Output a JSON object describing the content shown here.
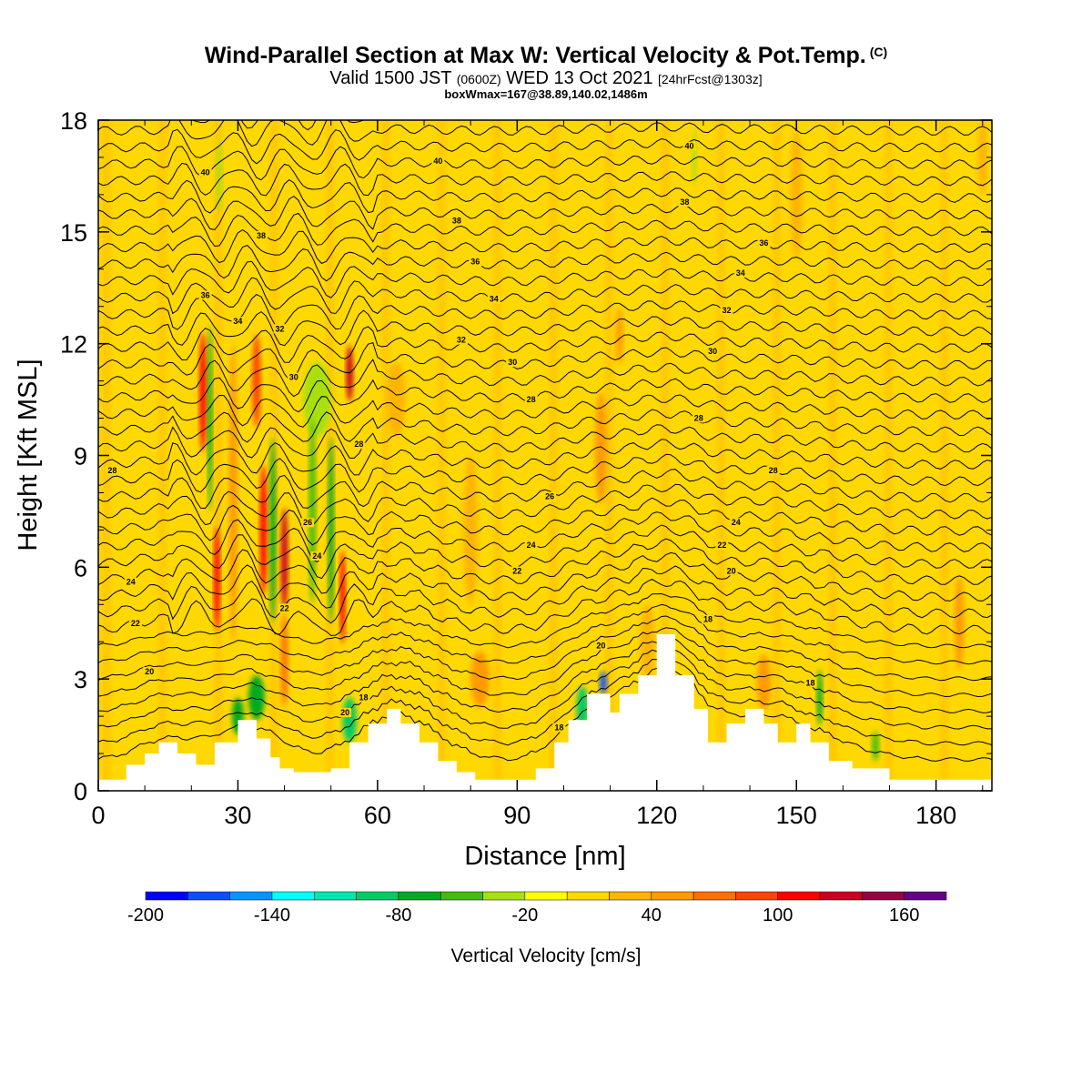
{
  "header": {
    "title": "Wind-Parallel Section at Max W: Vertical Velocity & Pot.Temp.",
    "title_mark": "(C)",
    "valid_prefix": "Valid 1500 JST",
    "valid_utc": "(0600Z)",
    "valid_date": "WED 13 Oct 2021",
    "forecast": "[24hrFcst@1303z]",
    "box_info": "boxWmax=167@38.89,140.02,1486m"
  },
  "chart_data": {
    "type": "heatmap",
    "xlabel": "Distance [nm]",
    "ylabel": "Height [Kft MSL]",
    "xlim": [
      0,
      192
    ],
    "ylim": [
      0,
      18
    ],
    "x_ticks": [
      "0",
      "30",
      "60",
      "90",
      "120",
      "150",
      "180"
    ],
    "y_ticks": [
      "0",
      "3",
      "6",
      "9",
      "12",
      "15",
      "18"
    ],
    "colorbar": {
      "title": "Vertical Velocity [cm/s]",
      "range": [
        -200,
        180
      ],
      "step": 20,
      "tick_labels": [
        "-200",
        "-140",
        "-80",
        "-20",
        "40",
        "100",
        "160"
      ],
      "colors": [
        "#0000ff",
        "#0a4fff",
        "#0096ff",
        "#00ffff",
        "#00e8b0",
        "#00cc66",
        "#00aa22",
        "#44bb11",
        "#a8e010",
        "#ffff00",
        "#ffd800",
        "#ffb400",
        "#ff9a00",
        "#ff7000",
        "#ff4400",
        "#ff0000",
        "#cc0022",
        "#990044",
        "#660088"
      ]
    },
    "terrain": {
      "x": [
        0,
        6,
        6,
        10,
        10,
        13,
        13,
        17,
        17,
        21,
        21,
        25,
        25,
        30,
        30,
        34,
        34,
        37,
        37,
        39,
        39,
        42,
        42,
        46,
        46,
        50,
        50,
        54,
        54,
        58,
        58,
        62,
        62,
        65,
        65,
        69,
        69,
        73,
        73,
        77,
        77,
        81,
        81,
        85,
        85,
        90,
        90,
        94,
        94,
        98,
        98,
        101,
        101,
        105,
        105,
        110,
        110,
        112,
        112,
        116,
        116,
        120,
        120,
        124,
        124,
        128,
        128,
        131,
        131,
        135,
        135,
        139,
        139,
        143,
        143,
        146,
        146,
        150,
        150,
        153,
        153,
        157,
        157,
        162,
        162,
        170,
        170,
        192
      ],
      "kft": [
        0.3,
        0.3,
        0.7,
        0.7,
        1.0,
        1.0,
        1.3,
        1.3,
        1.0,
        1.0,
        0.7,
        0.7,
        1.3,
        1.3,
        1.9,
        1.9,
        1.4,
        1.4,
        0.9,
        0.9,
        0.6,
        0.6,
        0.5,
        0.5,
        0.5,
        0.5,
        0.6,
        0.6,
        1.3,
        1.3,
        1.8,
        1.8,
        2.2,
        2.2,
        1.8,
        1.8,
        1.3,
        1.3,
        0.8,
        0.8,
        0.5,
        0.5,
        0.3,
        0.3,
        0.3,
        0.3,
        0.3,
        0.3,
        0.6,
        0.6,
        1.3,
        1.3,
        1.9,
        1.9,
        2.6,
        2.6,
        2.1,
        2.1,
        2.6,
        2.6,
        3.1,
        3.1,
        4.2,
        4.2,
        3.1,
        3.1,
        2.2,
        2.2,
        1.3,
        1.3,
        1.8,
        1.8,
        2.2,
        2.2,
        1.8,
        1.8,
        1.3,
        1.3,
        1.8,
        1.8,
        1.3,
        1.3,
        0.8,
        0.8,
        0.6,
        0.6,
        0.3,
        0.3
      ]
    },
    "velocity_features": [
      {
        "x": 22.5,
        "kft": 10.7,
        "w": 1.5,
        "h": 3.2,
        "value": 110
      },
      {
        "x": 25.5,
        "kft": 5.7,
        "w": 1.3,
        "h": 2.8,
        "value": 100
      },
      {
        "x": 29,
        "kft": 8.0,
        "w": 1.8,
        "h": 8.0,
        "value": 40
      },
      {
        "x": 34,
        "kft": 11.0,
        "w": 1.8,
        "h": 2.5,
        "value": 80
      },
      {
        "x": 35.5,
        "kft": 7.0,
        "w": 1.5,
        "h": 3.5,
        "value": 110
      },
      {
        "x": 40,
        "kft": 6.2,
        "w": 1.5,
        "h": 2.8,
        "value": 120
      },
      {
        "x": 40,
        "kft": 3.5,
        "w": 1.5,
        "h": 2.5,
        "value": 60
      },
      {
        "x": 54,
        "kft": 11.2,
        "w": 1.5,
        "h": 1.5,
        "value": 120
      },
      {
        "x": 52.5,
        "kft": 5.2,
        "w": 1.2,
        "h": 2.5,
        "value": 110
      },
      {
        "x": 47,
        "kft": 10.5,
        "w": 6.0,
        "h": 2.0,
        "value": -40
      },
      {
        "x": 37.5,
        "kft": 7.0,
        "w": 1.3,
        "h": 5.0,
        "value": -70
      },
      {
        "x": 46,
        "kft": 7.5,
        "w": 1.5,
        "h": 5.0,
        "value": -60
      },
      {
        "x": 50,
        "kft": 7.0,
        "w": 1.2,
        "h": 5.0,
        "value": -80
      },
      {
        "x": 24,
        "kft": 10.0,
        "w": 1.0,
        "h": 5.0,
        "value": -70
      },
      {
        "x": 26,
        "kft": 16.5,
        "w": 1.2,
        "h": 2.0,
        "value": -40
      },
      {
        "x": 34,
        "kft": 2.5,
        "w": 3.5,
        "h": 1.2,
        "value": -80
      },
      {
        "x": 30,
        "kft": 2.0,
        "w": 2.5,
        "h": 1.0,
        "value": -70
      },
      {
        "x": 54,
        "kft": 1.9,
        "w": 3.0,
        "h": 1.2,
        "value": -90
      },
      {
        "x": 104,
        "kft": 2.2,
        "w": 2.5,
        "h": 1.2,
        "value": -90
      },
      {
        "x": 108.5,
        "kft": 2.9,
        "w": 1.5,
        "h": 0.6,
        "value": -180
      },
      {
        "x": 155,
        "kft": 2.5,
        "w": 1.2,
        "h": 1.5,
        "value": -80
      },
      {
        "x": 167,
        "kft": 1.2,
        "w": 1.5,
        "h": 0.8,
        "value": -60
      },
      {
        "x": 128,
        "kft": 17.0,
        "w": 1.0,
        "h": 1.5,
        "value": -40
      },
      {
        "x": 64,
        "kft": 10.5,
        "w": 4.0,
        "h": 2.0,
        "value": 30
      },
      {
        "x": 80,
        "kft": 7.0,
        "w": 3.0,
        "h": 4.0,
        "value": 25
      },
      {
        "x": 108,
        "kft": 9.2,
        "w": 2.5,
        "h": 3.0,
        "value": 50
      },
      {
        "x": 112,
        "kft": 12.2,
        "w": 1.5,
        "h": 1.5,
        "value": 50
      },
      {
        "x": 82,
        "kft": 3.0,
        "w": 4.0,
        "h": 1.5,
        "value": 40
      },
      {
        "x": 143,
        "kft": 2.9,
        "w": 3.0,
        "h": 1.5,
        "value": 40
      },
      {
        "x": 185,
        "kft": 4.5,
        "w": 2.0,
        "h": 2.5,
        "value": 40
      },
      {
        "x": 150,
        "kft": 16.0,
        "w": 2.5,
        "h": 3.5,
        "value": 30
      },
      {
        "x": 118,
        "kft": 4.0,
        "w": 3.0,
        "h": 2.0,
        "value": 25
      },
      {
        "x": 190,
        "kft": 17.0,
        "w": 2.0,
        "h": 2.0,
        "value": 30
      }
    ],
    "theta_contour_labels": [
      {
        "text": "40",
        "x": 23,
        "kft": 16.6
      },
      {
        "text": "40",
        "x": 73,
        "kft": 16.9
      },
      {
        "text": "40",
        "x": 127,
        "kft": 17.3
      },
      {
        "text": "38",
        "x": 35,
        "kft": 14.9
      },
      {
        "text": "38",
        "x": 77,
        "kft": 15.3
      },
      {
        "text": "38",
        "x": 126,
        "kft": 15.8
      },
      {
        "text": "36",
        "x": 143,
        "kft": 14.7
      },
      {
        "text": "36",
        "x": 81,
        "kft": 14.2
      },
      {
        "text": "36",
        "x": 23,
        "kft": 13.3
      },
      {
        "text": "34",
        "x": 85,
        "kft": 13.2
      },
      {
        "text": "34",
        "x": 30,
        "kft": 12.6
      },
      {
        "text": "34",
        "x": 138,
        "kft": 13.9
      },
      {
        "text": "32",
        "x": 39,
        "kft": 12.4
      },
      {
        "text": "32",
        "x": 78,
        "kft": 12.1
      },
      {
        "text": "32",
        "x": 135,
        "kft": 12.9
      },
      {
        "text": "30",
        "x": 42,
        "kft": 11.1
      },
      {
        "text": "30",
        "x": 89,
        "kft": 11.5
      },
      {
        "text": "30",
        "x": 132,
        "kft": 11.8
      },
      {
        "text": "28",
        "x": 93,
        "kft": 10.5
      },
      {
        "text": "28",
        "x": 129,
        "kft": 10.0
      },
      {
        "text": "28",
        "x": 56,
        "kft": 9.3
      },
      {
        "text": "28",
        "x": 3,
        "kft": 8.6
      },
      {
        "text": "28",
        "x": 145,
        "kft": 8.6
      },
      {
        "text": "26",
        "x": 97,
        "kft": 7.9
      },
      {
        "text": "26",
        "x": 45,
        "kft": 7.2
      },
      {
        "text": "24",
        "x": 93,
        "kft": 6.6
      },
      {
        "text": "24",
        "x": 47,
        "kft": 6.3
      },
      {
        "text": "24",
        "x": 137,
        "kft": 7.2
      },
      {
        "text": "24",
        "x": 7,
        "kft": 5.6
      },
      {
        "text": "22",
        "x": 90,
        "kft": 5.9
      },
      {
        "text": "22",
        "x": 134,
        "kft": 6.6
      },
      {
        "text": "22",
        "x": 40,
        "kft": 4.9
      },
      {
        "text": "22",
        "x": 8,
        "kft": 4.5
      },
      {
        "text": "20",
        "x": 136,
        "kft": 5.9
      },
      {
        "text": "20",
        "x": 11,
        "kft": 3.2
      },
      {
        "text": "20",
        "x": 108,
        "kft": 3.9
      },
      {
        "text": "20",
        "x": 53,
        "kft": 2.1
      },
      {
        "text": "18",
        "x": 131,
        "kft": 4.6
      },
      {
        "text": "18",
        "x": 57,
        "kft": 2.5
      },
      {
        "text": "18",
        "x": 99,
        "kft": 1.7
      },
      {
        "text": "18",
        "x": 153,
        "kft": 2.9
      }
    ],
    "grid": false,
    "legend": "bottom colorbar"
  }
}
